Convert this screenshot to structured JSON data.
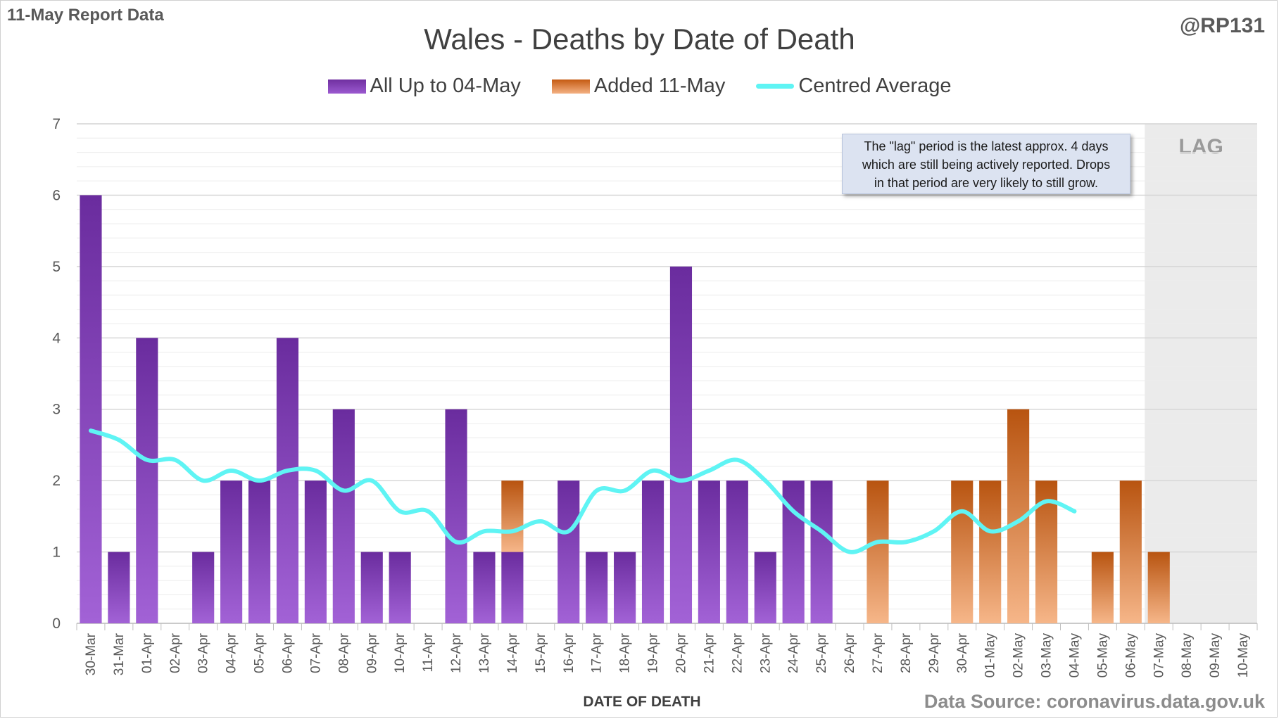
{
  "header": {
    "report_label": "11-May Report Data",
    "author": "@RP131",
    "source": "Data Source: coronavirus.data.gov.uk"
  },
  "annotation": {
    "lag_note_lines": [
      "The \"lag\" period is the latest approx. 4 days",
      "which are still being actively reported. Drops",
      "in that period are very likely to still grow."
    ],
    "lag_label": "LAG",
    "lag_start_category": "07-May"
  },
  "chart_data": {
    "type": "bar",
    "stacked": true,
    "title": "Wales - Deaths by Date of Death",
    "xlabel": "DATE OF DEATH",
    "ylabel": "",
    "ylim": [
      0,
      7
    ],
    "yticks": [
      0,
      1,
      2,
      3,
      4,
      5,
      6,
      7
    ],
    "grid": true,
    "legend_position": "top",
    "categories": [
      "30-Mar",
      "31-Mar",
      "01-Apr",
      "02-Apr",
      "03-Apr",
      "04-Apr",
      "05-Apr",
      "06-Apr",
      "07-Apr",
      "08-Apr",
      "09-Apr",
      "10-Apr",
      "11-Apr",
      "12-Apr",
      "13-Apr",
      "14-Apr",
      "15-Apr",
      "16-Apr",
      "17-Apr",
      "18-Apr",
      "19-Apr",
      "20-Apr",
      "21-Apr",
      "22-Apr",
      "23-Apr",
      "24-Apr",
      "25-Apr",
      "26-Apr",
      "27-Apr",
      "28-Apr",
      "29-Apr",
      "30-Apr",
      "01-May",
      "02-May",
      "03-May",
      "04-May",
      "05-May",
      "06-May",
      "07-May",
      "08-May",
      "09-May",
      "10-May"
    ],
    "series": [
      {
        "name": "All Up to 04-May",
        "kind": "bar",
        "color": "#7030a0",
        "values": [
          6,
          1,
          4,
          0,
          1,
          2,
          2,
          4,
          2,
          3,
          1,
          1,
          0,
          3,
          1,
          1,
          0,
          2,
          1,
          1,
          2,
          5,
          2,
          2,
          1,
          2,
          2,
          0,
          0,
          0,
          0,
          0,
          0,
          0,
          0,
          0,
          0,
          0,
          0,
          0,
          0,
          0
        ]
      },
      {
        "name": "Added 11-May",
        "kind": "bar",
        "color": "#c55a11",
        "values": [
          0,
          0,
          0,
          0,
          0,
          0,
          0,
          0,
          0,
          0,
          0,
          0,
          0,
          0,
          0,
          1,
          0,
          0,
          0,
          0,
          0,
          0,
          0,
          0,
          0,
          0,
          0,
          0,
          2,
          0,
          0,
          2,
          2,
          3,
          2,
          0,
          1,
          2,
          1,
          0,
          0,
          0
        ]
      },
      {
        "name": "Centred Average",
        "kind": "line",
        "color": "#5ff4f4",
        "values": [
          2.7,
          2.57,
          2.29,
          2.29,
          2.0,
          2.14,
          2.0,
          2.14,
          2.14,
          1.86,
          2.0,
          1.57,
          1.57,
          1.14,
          1.29,
          1.29,
          1.43,
          1.29,
          1.86,
          1.86,
          2.14,
          2.0,
          2.14,
          2.29,
          2.0,
          1.57,
          1.29,
          1.0,
          1.14,
          1.14,
          1.29,
          1.57,
          1.29,
          1.43,
          1.71,
          1.57,
          null,
          null,
          null,
          null,
          null,
          null
        ]
      }
    ]
  }
}
